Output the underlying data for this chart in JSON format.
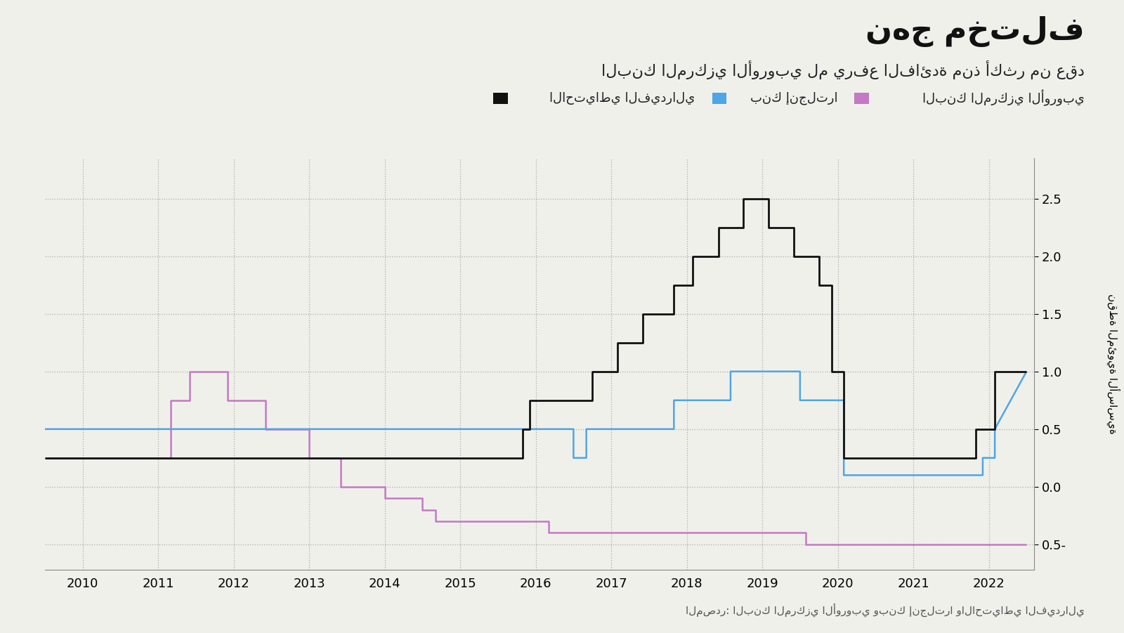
{
  "title": "نهج مختلف",
  "subtitle": "البنك المركزي الأوروبي لم يرفع الفائدة منذ أكثر من عقد",
  "ylabel": "نقطة المئوية الأساسية",
  "source_text": "المصدر: البنك المركزي الأوروبي وبنك إنجلترا والاحتياطي الفيدرالي",
  "legend_ecb": "البنك المركزي الأوروبي",
  "legend_boe": "بنك إنجلترا",
  "legend_fed": "الاحتياطي الفيدرالي",
  "ecb_color": "#c479c4",
  "boe_color": "#4da6e8",
  "fed_color": "#111111",
  "bg_color": "#f0f0eb",
  "ylim": [
    -0.72,
    2.85
  ],
  "yticks": [
    -0.5,
    0.0,
    0.5,
    1.0,
    1.5,
    2.0,
    2.5
  ],
  "ecb_x": [
    2009.5,
    2011.17,
    2011.17,
    2011.42,
    2011.42,
    2011.92,
    2011.92,
    2012.42,
    2012.42,
    2013.0,
    2013.0,
    2013.42,
    2013.42,
    2014.0,
    2014.0,
    2014.5,
    2014.5,
    2014.67,
    2014.67,
    2016.17,
    2016.17,
    2019.58,
    2019.58,
    2022.5
  ],
  "ecb_y": [
    0.25,
    0.25,
    0.75,
    0.75,
    1.0,
    1.0,
    0.75,
    0.75,
    0.5,
    0.5,
    0.25,
    0.25,
    0.0,
    0.0,
    -0.1,
    -0.1,
    -0.2,
    -0.2,
    -0.3,
    -0.3,
    -0.4,
    -0.4,
    -0.5,
    -0.5
  ],
  "boe_x": [
    2009.5,
    2016.5,
    2016.5,
    2016.67,
    2016.67,
    2017.83,
    2017.83,
    2018.58,
    2018.58,
    2019.5,
    2019.5,
    2020.08,
    2020.08,
    2021.83,
    2021.83,
    2021.92,
    2021.92,
    2022.08,
    2022.08,
    2022.5
  ],
  "boe_y": [
    0.5,
    0.5,
    0.25,
    0.25,
    0.5,
    0.5,
    0.75,
    0.75,
    1.0,
    1.0,
    0.75,
    0.75,
    0.1,
    0.1,
    0.1,
    0.1,
    0.25,
    0.25,
    0.5,
    1.0
  ],
  "fed_x": [
    2009.5,
    2015.83,
    2015.83,
    2015.92,
    2015.92,
    2016.75,
    2016.75,
    2017.08,
    2017.08,
    2017.42,
    2017.42,
    2017.83,
    2017.83,
    2018.08,
    2018.08,
    2018.42,
    2018.42,
    2018.75,
    2018.75,
    2019.08,
    2019.08,
    2019.42,
    2019.42,
    2019.75,
    2019.75,
    2019.92,
    2019.92,
    2020.08,
    2020.08,
    2021.83,
    2021.83,
    2021.92,
    2021.92,
    2022.08,
    2022.08,
    2022.5
  ],
  "fed_y": [
    0.25,
    0.25,
    0.5,
    0.5,
    0.75,
    0.75,
    1.0,
    1.0,
    1.25,
    1.25,
    1.5,
    1.5,
    1.75,
    1.75,
    2.0,
    2.0,
    2.25,
    2.25,
    2.5,
    2.5,
    2.25,
    2.25,
    2.0,
    2.0,
    1.75,
    1.75,
    1.0,
    1.0,
    0.25,
    0.25,
    0.5,
    0.5,
    0.5,
    0.5,
    1.0,
    1.0
  ],
  "xticks": [
    2010,
    2011,
    2012,
    2013,
    2014,
    2015,
    2016,
    2017,
    2018,
    2019,
    2020,
    2021,
    2022
  ],
  "xlim": [
    2009.5,
    2022.6
  ]
}
